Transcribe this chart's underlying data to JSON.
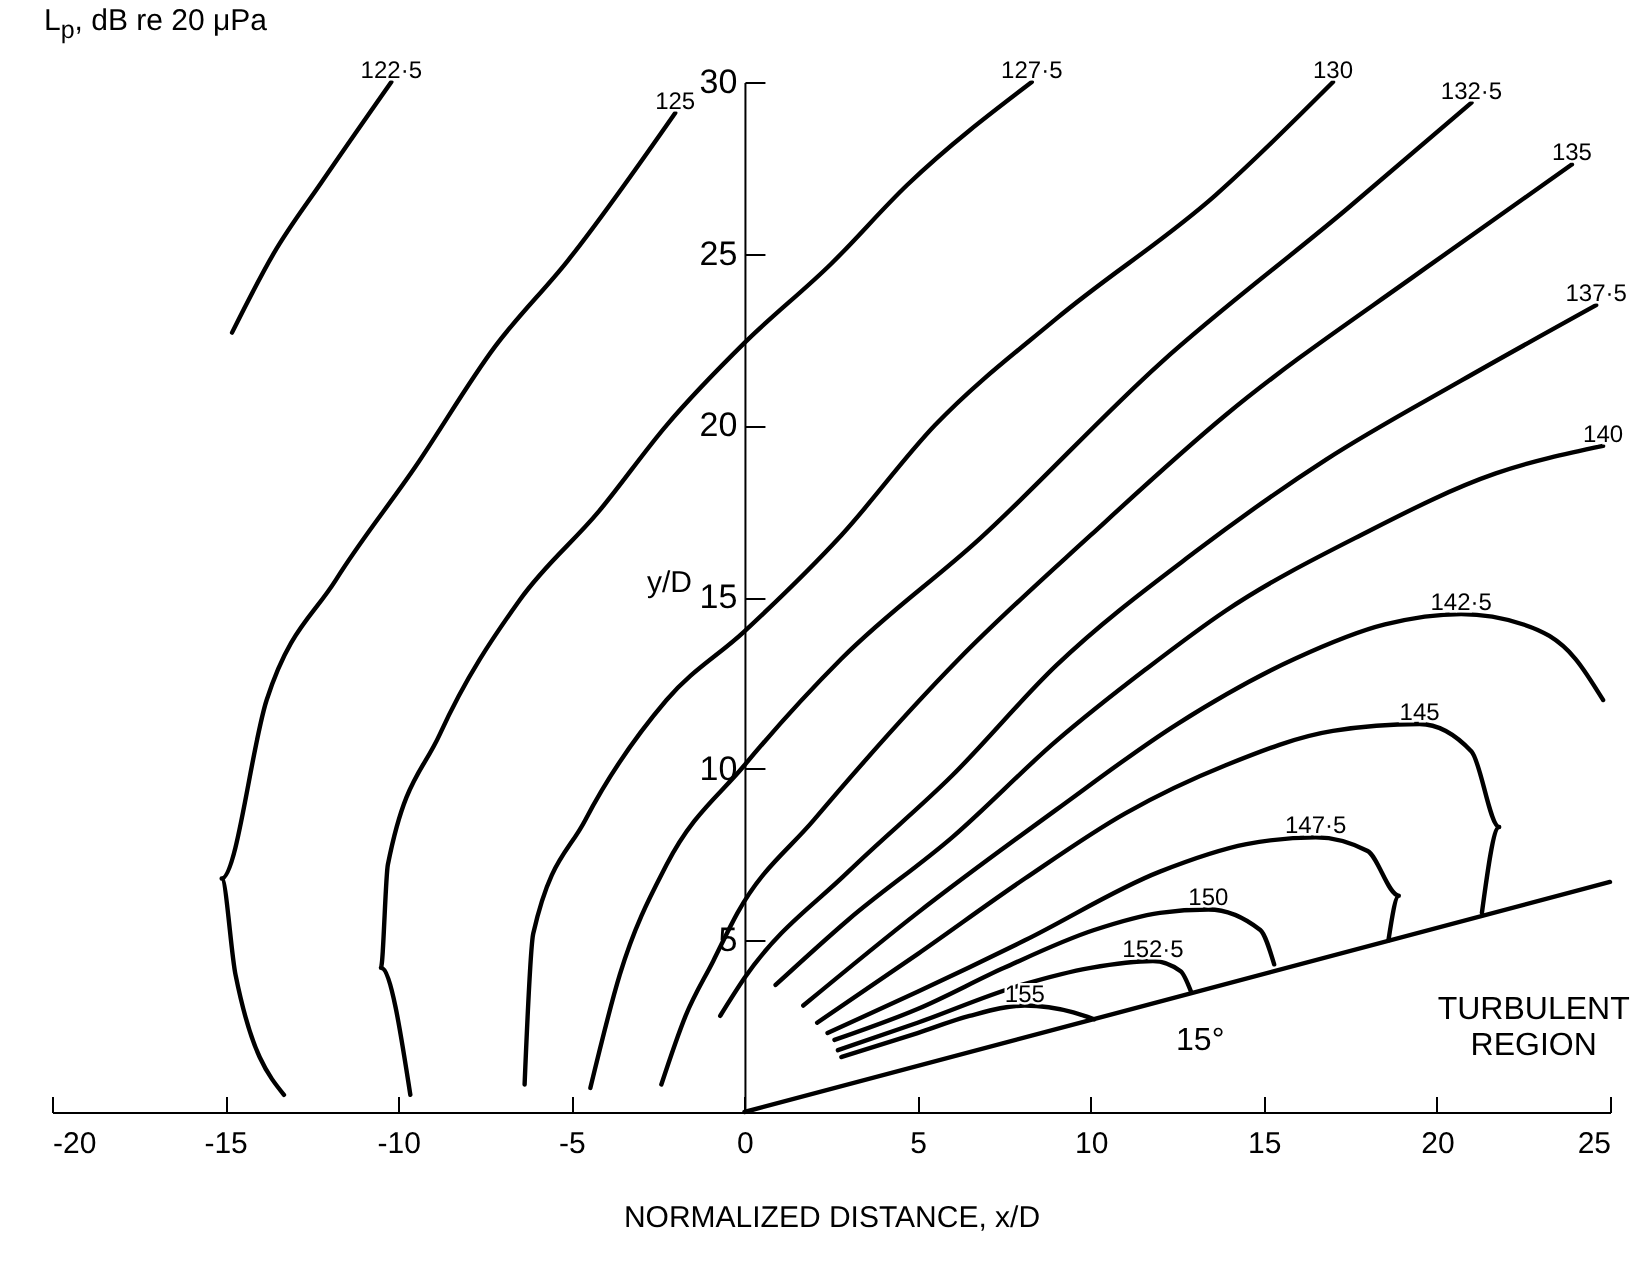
{
  "chart_data": {
    "type": "line",
    "title": "L$_{p}$,  dB re 20 μPa",
    "xlabel": "NORMALIZED DISTANCE,  x/D",
    "ylabel": "y/D",
    "xlim": [
      -20,
      25
    ],
    "xticks": [
      -20,
      -15,
      -10,
      -5,
      0,
      5,
      10,
      15,
      20,
      25
    ],
    "ylim": [
      0,
      30
    ],
    "yticks": [
      5,
      10,
      15,
      20,
      25,
      30
    ],
    "line_style": "solid",
    "series": [
      {
        "name": "122·5",
        "color": "#000000",
        "x": [
          -14.8,
          -13.6,
          -12.2,
          -10.2
        ],
        "values": [
          22.7,
          25,
          27.1,
          30
        ]
      },
      {
        "name": "125",
        "color": "#000000",
        "x": [
          -13.3,
          -14.7,
          -15.1,
          -13.8,
          -11.8,
          -9.5,
          -7.2,
          -5.1,
          -2
        ],
        "values": [
          0.5,
          4,
          6.8,
          12,
          15.5,
          18.8,
          22.3,
          24.8,
          29.1
        ]
      },
      {
        "name": "127·5",
        "color": "#000000",
        "x": [
          -9.65,
          -10.5,
          -10.3,
          -8.8,
          -6.5,
          -4.2,
          -2.25,
          0,
          2.5,
          4.7,
          8.3
        ],
        "values": [
          0.5,
          4.2,
          7.2,
          11,
          14.9,
          17.5,
          20,
          22.4,
          24.7,
          27,
          30
        ]
      },
      {
        "name": "130",
        "color": "#000000",
        "x": [
          -6.35,
          -6.1,
          -4.6,
          -2.25,
          0,
          2.8,
          5.5,
          9,
          13.6,
          17
        ],
        "values": [
          0.8,
          5.2,
          8.5,
          12,
          14,
          16.8,
          20,
          23.1,
          26.7,
          30
        ]
      },
      {
        "name": "132·5",
        "color": "#000000",
        "x": [
          -4.45,
          -3.6,
          -2.25,
          0,
          2.8,
          6.8,
          12,
          17.4,
          21
        ],
        "values": [
          0.7,
          4,
          7.2,
          10.1,
          13.2,
          16.7,
          21.8,
          26.3,
          29.4
        ]
      },
      {
        "name": "135",
        "color": "#000000",
        "x": [
          -2.4,
          -1.7,
          -0.9,
          -0.2,
          2,
          6.2,
          10,
          13.9,
          19.7,
          23.9
        ],
        "values": [
          0.8,
          2.8,
          4.4,
          5.8,
          8.5,
          13.2,
          16.8,
          20.3,
          24.6,
          27.6
        ]
      },
      {
        "name": "137·5",
        "color": "#000000",
        "x": [
          -0.7,
          0,
          3,
          6,
          9,
          13,
          16.8,
          20.7,
          24.6
        ],
        "values": [
          2.8,
          3.9,
          7,
          9.8,
          13,
          16.3,
          19,
          21.3,
          23.5
        ]
      },
      {
        "name": "140",
        "color": "#000000",
        "x": [
          0.9,
          3,
          6,
          9,
          11.6,
          13.9,
          17.8,
          21.7,
          24.8
        ],
        "values": [
          3.7,
          5.6,
          8,
          10.8,
          12.9,
          14.6,
          16.8,
          18.6,
          19.4
        ]
      },
      {
        "name": "142·5",
        "color": "#000000",
        "x": [
          1.7,
          5,
          9,
          12.5,
          15.9,
          18.5,
          20.7,
          22.5,
          24,
          24.8
        ],
        "values": [
          3.1,
          5.8,
          8.8,
          11.3,
          13.2,
          14.2,
          14.5,
          14.2,
          13.2,
          12
        ]
      },
      {
        "name": "145",
        "color": "#000000",
        "x": [
          2.1,
          5,
          8.1,
          11,
          13.9,
          17,
          19.5,
          21,
          21.8,
          21.3
        ],
        "values": [
          2.6,
          4.6,
          6.8,
          8.7,
          10.1,
          11.1,
          11.3,
          10.5,
          8.3,
          5.8
        ]
      },
      {
        "name": "147·5",
        "color": "#000000",
        "x": [
          2.4,
          5,
          8.1,
          12,
          14.5,
          16.5,
          18,
          18.9,
          18.6
        ],
        "values": [
          2.3,
          3.5,
          5,
          7,
          7.8,
          8,
          7.6,
          6.3,
          5
        ]
      },
      {
        "name": "150",
        "color": "#000000",
        "x": [
          2.6,
          5,
          7.5,
          10.1,
          12,
          13.4,
          14.9,
          15.3
        ],
        "values": [
          2.1,
          3,
          4.2,
          5.3,
          5.8,
          5.9,
          5.3,
          4.3
        ]
      },
      {
        "name": "152·5",
        "color": "#000000",
        "x": [
          2.7,
          5,
          8,
          10,
          11.8,
          12.6,
          12.9
        ],
        "values": [
          1.8,
          2.6,
          3.7,
          4.2,
          4.4,
          4.1,
          3.5
        ]
      },
      {
        "name": "155",
        "color": "#000000",
        "x": [
          2.8,
          5,
          6.5,
          8.1,
          9.5,
          10.1
        ],
        "values": [
          1.6,
          2.3,
          2.8,
          3.1,
          2.9,
          2.7
        ]
      },
      {
        "color": "#000000",
        "x": [
          0,
          25
        ],
        "values": [
          0,
          6.7
        ]
      }
    ],
    "annotations": [
      "15°",
      "TURBULENT\nREGION"
    ]
  }
}
